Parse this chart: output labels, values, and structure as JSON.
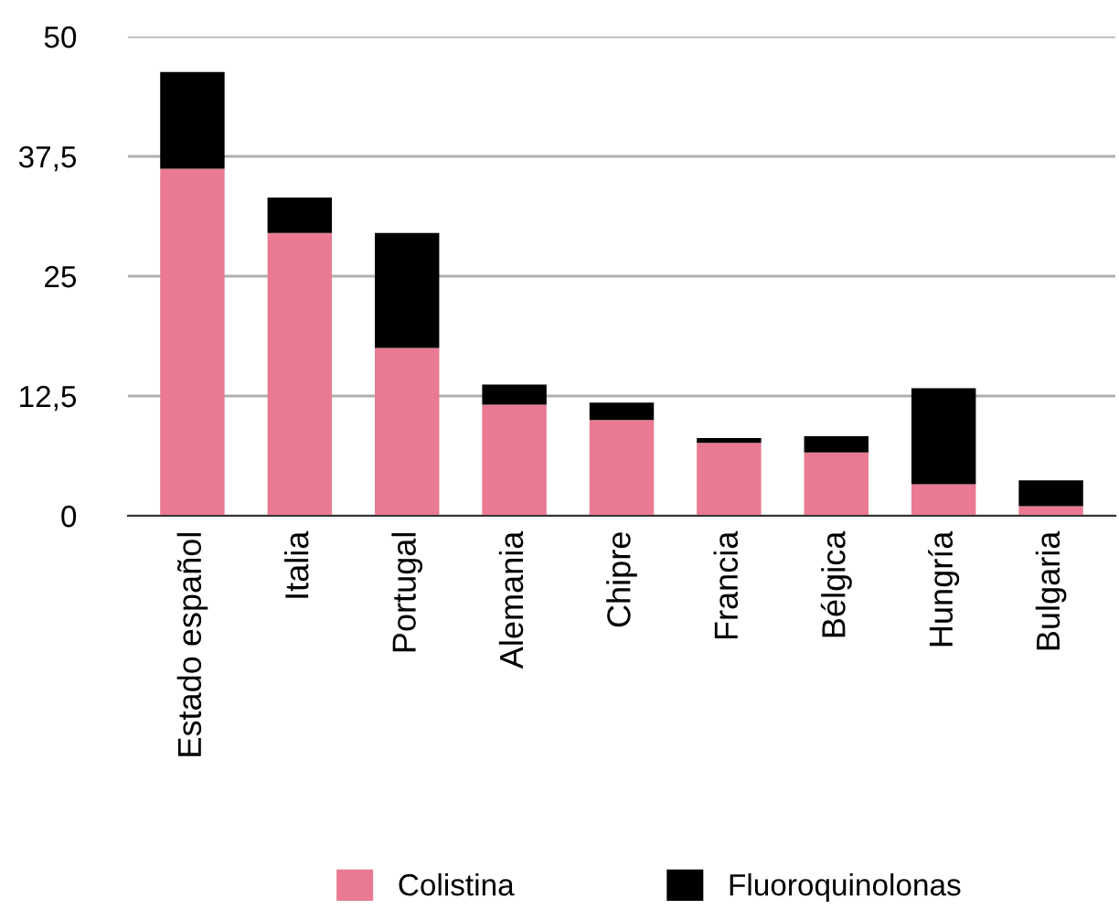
{
  "chart_data": {
    "type": "bar",
    "stacked": true,
    "categories": [
      "Estado español",
      "Italia",
      "Portugal",
      "Alemania",
      "Chipre",
      "Francia",
      "Bélgica",
      "Hungría",
      "Bulgaria"
    ],
    "series": [
      {
        "name": "Colistina",
        "color": "#e97a91",
        "values": [
          36.2,
          29.5,
          17.5,
          11.6,
          10.0,
          7.6,
          6.6,
          3.3,
          1.0
        ]
      },
      {
        "name": "Fluoroquinolonas",
        "color": "#000000",
        "values": [
          10.1,
          3.7,
          12.0,
          2.1,
          1.8,
          0.5,
          1.7,
          10.0,
          2.7
        ]
      }
    ],
    "ylim": [
      0,
      50
    ],
    "yticks": [
      0,
      {
        "value": 12.5,
        "label": "12,5"
      },
      25,
      {
        "value": 37.5,
        "label": "37,5"
      },
      50
    ],
    "grid": "y",
    "legend": "bottom"
  }
}
